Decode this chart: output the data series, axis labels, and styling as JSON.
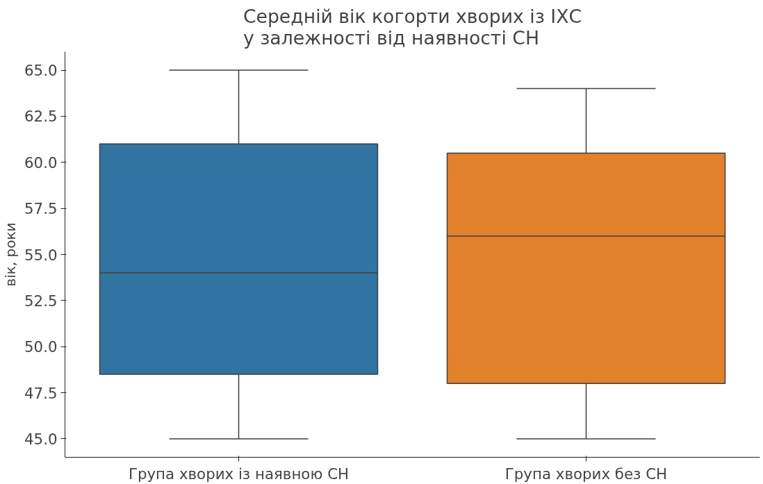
{
  "chart_data": {
    "type": "box",
    "title": "Середній вік когорти хворих із ІХС\nу залежності від наявності СН",
    "ylabel": "вік, роки",
    "categories": [
      "Група хворих із наявною СН",
      "Група хворих без СН"
    ],
    "boxes": [
      {
        "low": 45,
        "q1": 48.5,
        "median": 54,
        "q3": 61,
        "high": 65
      },
      {
        "low": 45,
        "q1": 48,
        "median": 56,
        "q3": 60.5,
        "high": 64
      }
    ],
    "colors": [
      "#3274a1",
      "#e1812c"
    ],
    "ylim": [
      44,
      66
    ],
    "yticks": [
      {
        "value": 45,
        "label": "45.0"
      },
      {
        "value": 47.5,
        "label": "47.5"
      },
      {
        "value": 50,
        "label": "50.0"
      },
      {
        "value": 52.5,
        "label": "52.5"
      },
      {
        "value": 55,
        "label": "55.0"
      },
      {
        "value": 57.5,
        "label": "57.5"
      },
      {
        "value": 60,
        "label": "60.0"
      },
      {
        "value": 62.5,
        "label": "62.5"
      },
      {
        "value": 65,
        "label": "65.0"
      }
    ],
    "grid": false
  }
}
